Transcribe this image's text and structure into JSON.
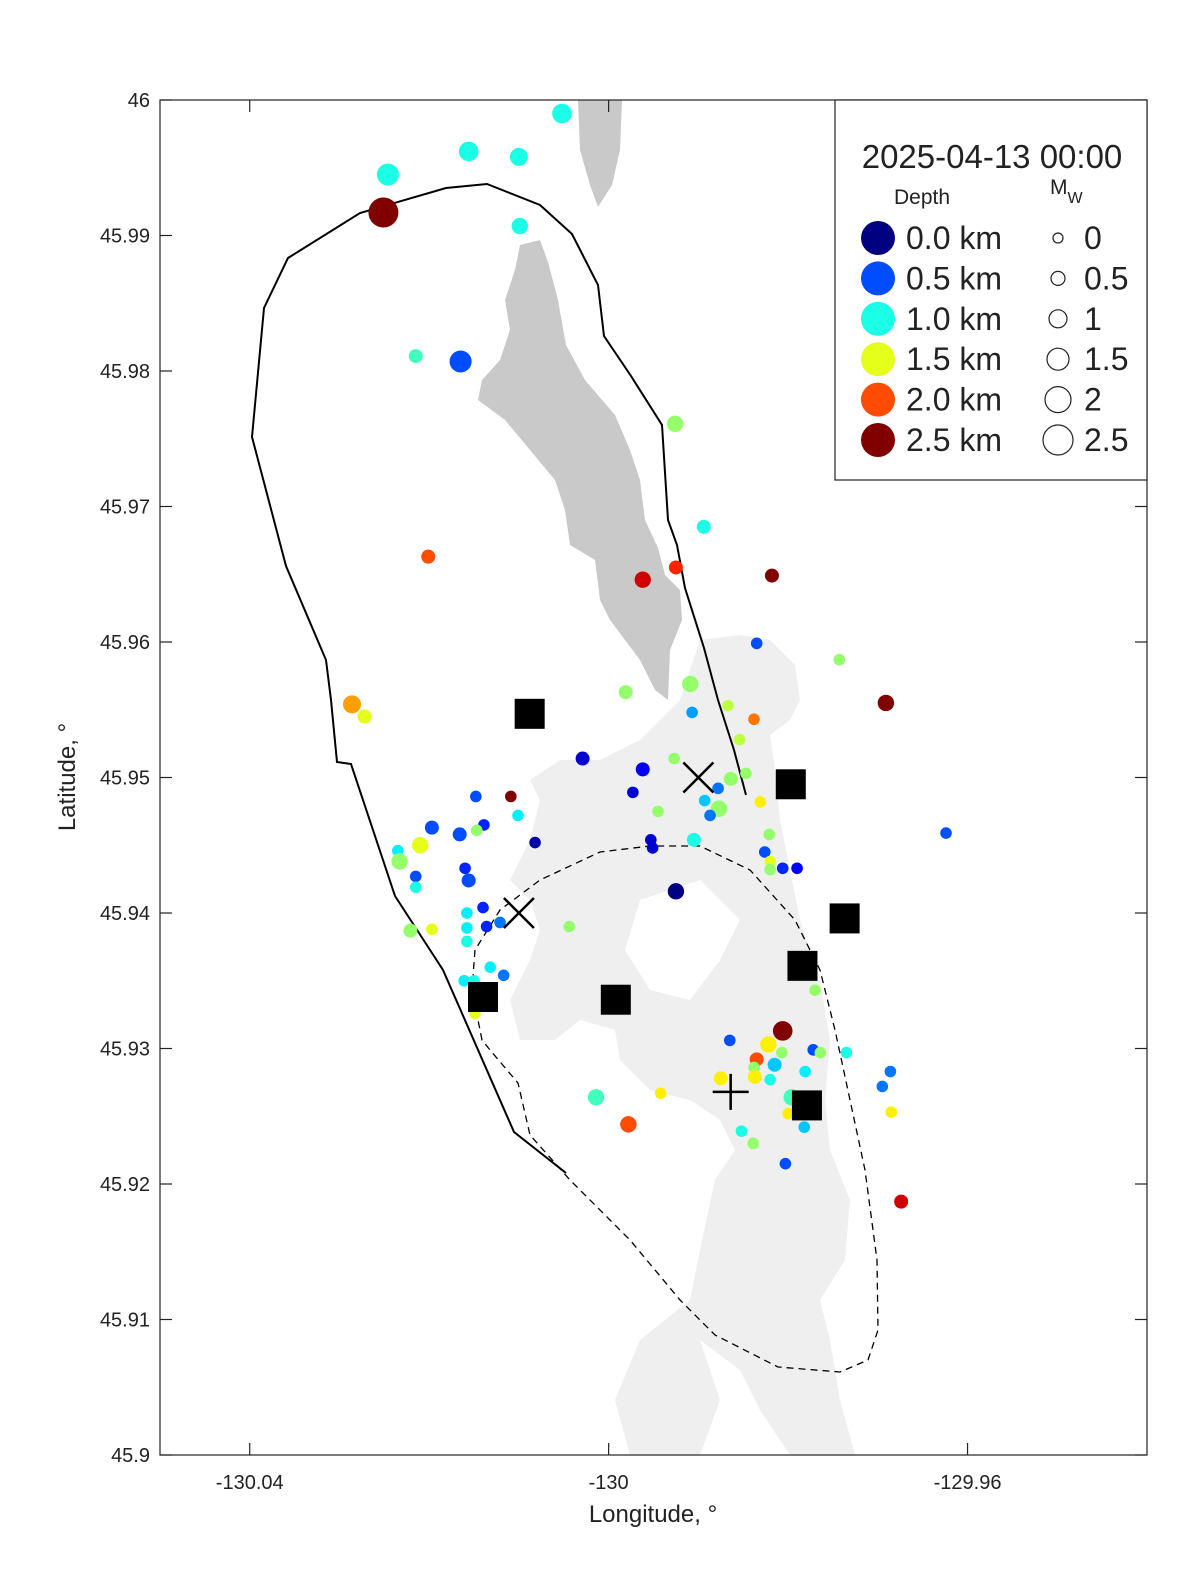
{
  "chart_data": {
    "type": "scatter",
    "xlabel": "Longitude, °",
    "ylabel": "Latitude, °",
    "xlim": [
      -130.05,
      -129.94
    ],
    "ylim": [
      45.9,
      46
    ],
    "xticks": [
      -130.04,
      -130,
      -129.96
    ],
    "yticks": [
      45.9,
      45.91,
      45.92,
      45.93,
      45.94,
      45.95,
      45.96,
      45.97,
      45.98,
      45.99,
      46
    ],
    "colormap": "jet",
    "clim": [
      0,
      2.5
    ],
    "legend_title": "2025-04-13 00:00",
    "depth_title": "Depth",
    "size_title": {
      "main": "M",
      "sub": "W"
    },
    "depth_legend": [
      {
        "value": 0,
        "label": "0.0 km"
      },
      {
        "value": 0.5,
        "label": "0.5 km"
      },
      {
        "value": 1,
        "label": "1.0 km"
      },
      {
        "value": 1.5,
        "label": "1.5 km"
      },
      {
        "value": 2,
        "label": "2.0 km"
      },
      {
        "value": 2.5,
        "label": "2.5 km"
      }
    ],
    "size_legend": [
      0,
      0.5,
      1,
      1.5,
      2,
      2.5
    ],
    "points": {
      "x": [
        -130.0052,
        -130.0246,
        -130.0156,
        -130.01,
        -130.0251,
        -130.0099,
        -130.0215,
        -130.0165,
        -129.9926,
        -129.9894,
        -130.0201,
        -129.9962,
        -129.9925,
        -129.9818,
        -129.9835,
        -129.9743,
        -129.9909,
        -129.9981,
        -129.9691,
        -130.0286,
        -130.0272,
        -129.9907,
        -129.9867,
        -129.9838,
        -129.9854,
        -130.0029,
        -129.9962,
        -129.9927,
        -129.9864,
        -129.9847,
        -129.9878,
        -129.9893,
        -129.9831,
        -129.9877,
        -129.9887,
        -129.9945,
        -129.9973,
        -130.0109,
        -130.0148,
        -130.0101,
        -130.0197,
        -130.0139,
        -130.0147,
        -130.0166,
        -130.0082,
        -129.9953,
        -129.9951,
        -129.9905,
        -129.9821,
        -129.9826,
        -130.021,
        -130.0235,
        -130.0233,
        -129.982,
        -129.9806,
        -129.979,
        -129.982,
        -130.016,
        -130.0215,
        -130.0156,
        -130.0215,
        -129.9925,
        -129.9624,
        -130.014,
        -130.0158,
        -130.0121,
        -130.0136,
        -130.0158,
        -130.0044,
        -130.0221,
        -130.0197,
        -130.0158,
        -130.0132,
        -130.0117,
        -130.0161,
        -130.015,
        -130.0149,
        -129.977,
        -129.9806,
        -129.9865,
        -129.9822,
        -129.9835,
        -129.9807,
        -129.9772,
        -129.9764,
        -129.9735,
        -129.9838,
        -129.9815,
        -129.982,
        -129.9781,
        -129.9837,
        -129.9875,
        -129.9686,
        -129.9695,
        -129.9942,
        -130.0014,
        -129.9796,
        -129.98,
        -129.9685,
        -129.9978,
        -129.9782,
        -129.9852,
        -129.9839,
        -129.9803,
        -129.9674
      ],
      "y": [
        45.999,
        45.9945,
        45.9962,
        45.9958,
        45.9917,
        45.9907,
        45.9811,
        45.9807,
        45.9761,
        45.9685,
        45.9663,
        45.9646,
        45.9655,
        45.9649,
        45.9599,
        45.9587,
        45.9569,
        45.9563,
        45.9555,
        45.9554,
        45.9545,
        45.9548,
        45.9553,
        45.9543,
        45.9528,
        45.9514,
        45.9506,
        45.9514,
        45.9499,
        45.9503,
        45.9492,
        45.9483,
        45.9482,
        45.9477,
        45.9472,
        45.9475,
        45.9489,
        45.9486,
        45.9486,
        45.9472,
        45.9463,
        45.9465,
        45.9461,
        45.9458,
        45.9452,
        45.9454,
        45.9448,
        45.9454,
        45.9458,
        45.9445,
        45.945,
        45.9446,
        45.9438,
        45.9438,
        45.9433,
        45.9433,
        45.9432,
        45.9433,
        45.9427,
        45.9424,
        45.9419,
        45.9416,
        45.9459,
        45.9404,
        45.94,
        45.9393,
        45.939,
        45.9389,
        45.939,
        45.9387,
        45.9388,
        45.9379,
        45.936,
        45.9354,
        45.935,
        45.935,
        45.9326,
        45.9343,
        45.9313,
        45.9306,
        45.9303,
        45.9292,
        45.9297,
        45.9299,
        45.9297,
        45.9297,
        45.9286,
        45.9288,
        45.9277,
        45.9283,
        45.9279,
        45.9278,
        45.9283,
        45.9272,
        45.9267,
        45.9264,
        45.9264,
        45.9252,
        45.9253,
        45.9244,
        45.9242,
        45.9239,
        45.923,
        45.9215,
        45.9187
      ],
      "depth": [
        1,
        1,
        1,
        1,
        2.5,
        1,
        1.1,
        0.5,
        1.3,
        1,
        2,
        2.3,
        2.1,
        2.5,
        0.5,
        1.3,
        1.3,
        1.3,
        2.5,
        1.8,
        1.5,
        0.7,
        1.4,
        1.9,
        1.4,
        0.2,
        0.3,
        1.3,
        1.3,
        1.3,
        0.6,
        0.8,
        1.6,
        1.3,
        0.6,
        1.3,
        0.2,
        2.5,
        0.5,
        0.9,
        0.5,
        0.4,
        1.3,
        0.5,
        0.1,
        0.2,
        0.2,
        1,
        1.3,
        0.5,
        1.5,
        0.9,
        1.3,
        1.5,
        0.4,
        0.3,
        1.3,
        0.4,
        0.5,
        0.5,
        1,
        0,
        0.5,
        0.4,
        0.9,
        0.6,
        0.4,
        0.9,
        1.3,
        1.3,
        1.5,
        1,
        0.9,
        0.6,
        0.9,
        1,
        1.5,
        1.3,
        2.5,
        0.5,
        1.6,
        2,
        1.3,
        0.5,
        1.3,
        1,
        1.3,
        0.8,
        1,
        0.9,
        1.6,
        1.6,
        0.6,
        0.6,
        1.6,
        1.1,
        1.1,
        1.6,
        1.6,
        2,
        0.8,
        1,
        1.3,
        0.5,
        2.3
      ],
      "mag": [
        1.2,
        1.5,
        1.2,
        1,
        2.5,
        0.8,
        0.5,
        1.5,
        0.8,
        0.5,
        0.5,
        0.8,
        0.5,
        0.5,
        0.2,
        0.2,
        0.8,
        0.5,
        0.8,
        1,
        0.5,
        0.2,
        0.2,
        0.2,
        0.2,
        0.5,
        0.5,
        0.2,
        0.5,
        0.2,
        0.2,
        0.2,
        0.2,
        0.8,
        0.2,
        0.2,
        0.2,
        0.2,
        0.2,
        0.2,
        0.5,
        0.2,
        0.2,
        0.5,
        0.2,
        0.2,
        0.2,
        0.5,
        0.2,
        0.2,
        0.8,
        0.2,
        0.8,
        0.2,
        0.2,
        0.2,
        0.2,
        0.2,
        0.2,
        0.5,
        0.2,
        0.8,
        0.2,
        0.2,
        0.2,
        0.2,
        0.2,
        0.2,
        0.2,
        0.5,
        0.2,
        0.2,
        0.2,
        0.2,
        0.2,
        0.2,
        0.2,
        0.2,
        1.2,
        0.2,
        0.8,
        0.5,
        0.2,
        0.2,
        0.2,
        0.2,
        0.2,
        0.5,
        0.2,
        0.2,
        0.5,
        0.5,
        0.2,
        0.2,
        0.2,
        0.8,
        0.8,
        0.2,
        0.2,
        0.8,
        0.2,
        0.2,
        0.2,
        0.2,
        0.5
      ]
    },
    "stations": {
      "x": [
        -130.0088,
        -129.9797,
        -129.9737,
        -129.9784,
        -130.014,
        -129.9992,
        -129.9779
      ],
      "y": [
        45.9547,
        45.9495,
        45.9396,
        45.9361,
        45.9338,
        45.9336,
        45.9258
      ]
    },
    "crosses": {
      "x": [
        -129.99,
        -130.01
      ],
      "y": [
        45.95,
        45.94
      ]
    },
    "plus": {
      "x": [
        -129.9864
      ],
      "y": [
        45.9268
      ]
    }
  }
}
